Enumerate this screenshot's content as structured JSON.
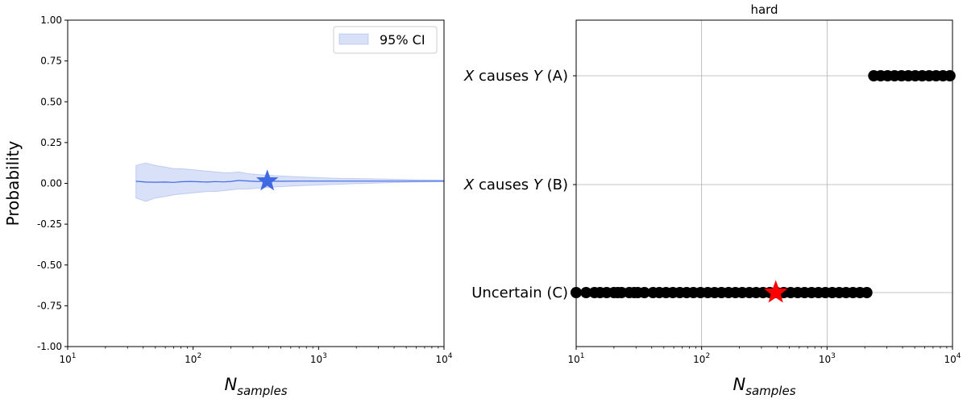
{
  "chart_data": [
    {
      "type": "line",
      "title": "",
      "xlabel": "N",
      "xlabel_sub": "samples",
      "ylabel": "Probability",
      "xscale": "log",
      "xlim": [
        10,
        10000
      ],
      "ylim": [
        -1.0,
        1.0
      ],
      "grid": false,
      "legend_position": "top-right",
      "xticks": [
        {
          "base": "10",
          "exp": "1",
          "value": 10
        },
        {
          "base": "10",
          "exp": "2",
          "value": 100
        },
        {
          "base": "10",
          "exp": "3",
          "value": 1000
        },
        {
          "base": "10",
          "exp": "4",
          "value": 10000
        }
      ],
      "yticks": [
        "-1.00",
        "-0.75",
        "-0.50",
        "-0.25",
        "0.00",
        "0.25",
        "0.50",
        "0.75",
        "1.00"
      ],
      "series": [
        {
          "name": "",
          "color": "#4169e1",
          "x": [
            35,
            42,
            50,
            60,
            70,
            80,
            95,
            110,
            130,
            150,
            175,
            200,
            230,
            270,
            320,
            390,
            500,
            700,
            1000,
            1500,
            2500,
            4000,
            6000,
            10000
          ],
          "y": [
            0.013,
            0.008,
            0.007,
            0.008,
            0.006,
            0.01,
            0.012,
            0.01,
            0.008,
            0.011,
            0.009,
            0.012,
            0.018,
            0.015,
            0.012,
            0.014,
            0.013,
            0.014,
            0.014,
            0.014,
            0.014,
            0.014,
            0.014,
            0.014
          ]
        }
      ],
      "ci_band": {
        "name": "95% CI",
        "color": "#4169e1",
        "x": [
          35,
          42,
          50,
          60,
          70,
          80,
          95,
          110,
          130,
          150,
          175,
          200,
          230,
          270,
          320,
          390,
          500,
          700,
          1000,
          1500,
          2500,
          4000,
          6000,
          10000
        ],
        "lower": [
          -0.09,
          -0.11,
          -0.09,
          -0.08,
          -0.07,
          -0.065,
          -0.06,
          -0.055,
          -0.05,
          -0.05,
          -0.045,
          -0.04,
          -0.035,
          -0.035,
          -0.03,
          -0.025,
          -0.02,
          -0.015,
          -0.01,
          -0.005,
          0.0,
          0.005,
          0.008,
          0.01
        ],
        "upper": [
          0.11,
          0.125,
          0.11,
          0.1,
          0.09,
          0.09,
          0.085,
          0.08,
          0.075,
          0.07,
          0.065,
          0.065,
          0.07,
          0.06,
          0.055,
          0.05,
          0.045,
          0.04,
          0.035,
          0.03,
          0.028,
          0.025,
          0.022,
          0.02
        ]
      },
      "marker": {
        "x": 390,
        "y": 0.014,
        "shape": "star",
        "color": "#4169e1"
      }
    },
    {
      "type": "scatter",
      "title": "hard",
      "xlabel": "N",
      "xlabel_sub": "samples",
      "xscale": "log",
      "xlim": [
        10,
        10000
      ],
      "grid": true,
      "xticks": [
        {
          "base": "10",
          "exp": "1",
          "value": 10
        },
        {
          "base": "10",
          "exp": "2",
          "value": 100
        },
        {
          "base": "10",
          "exp": "3",
          "value": 1000
        },
        {
          "base": "10",
          "exp": "4",
          "value": 10000
        }
      ],
      "categories": [
        {
          "key": "A",
          "pre": "X",
          "mid": " causes ",
          "post": "Y",
          "tail": " (A)"
        },
        {
          "key": "B",
          "pre": "X",
          "mid": " causes ",
          "post": "Y",
          "tail": " (B)"
        },
        {
          "key": "C",
          "pre": "",
          "mid": "Uncertain",
          "post": "",
          "tail": " (C)"
        }
      ],
      "series": [
        {
          "name": "",
          "color": "#000000",
          "category": "C",
          "x": [
            10,
            12,
            14,
            15.5,
            17.5,
            20,
            21.5,
            23,
            26.5,
            29,
            31,
            35,
            41,
            46,
            52,
            59,
            67,
            76,
            86,
            98,
            112,
            127,
            144,
            164,
            186,
            211,
            240,
            272,
            309,
            350,
            398,
            452,
            513,
            583,
            662,
            752,
            853,
            969,
            1100,
            1249,
            1418,
            1610,
            1828,
            2076
          ]
        },
        {
          "name": "",
          "color": "#000000",
          "category": "A",
          "x": [
            2357,
            2677,
            3039,
            3451,
            3918,
            4449,
            5052,
            5736,
            6513,
            7395,
            8397,
            9534
          ]
        }
      ],
      "marker": {
        "x": 390,
        "category": "C",
        "shape": "star",
        "color": "#ff0000"
      }
    }
  ]
}
